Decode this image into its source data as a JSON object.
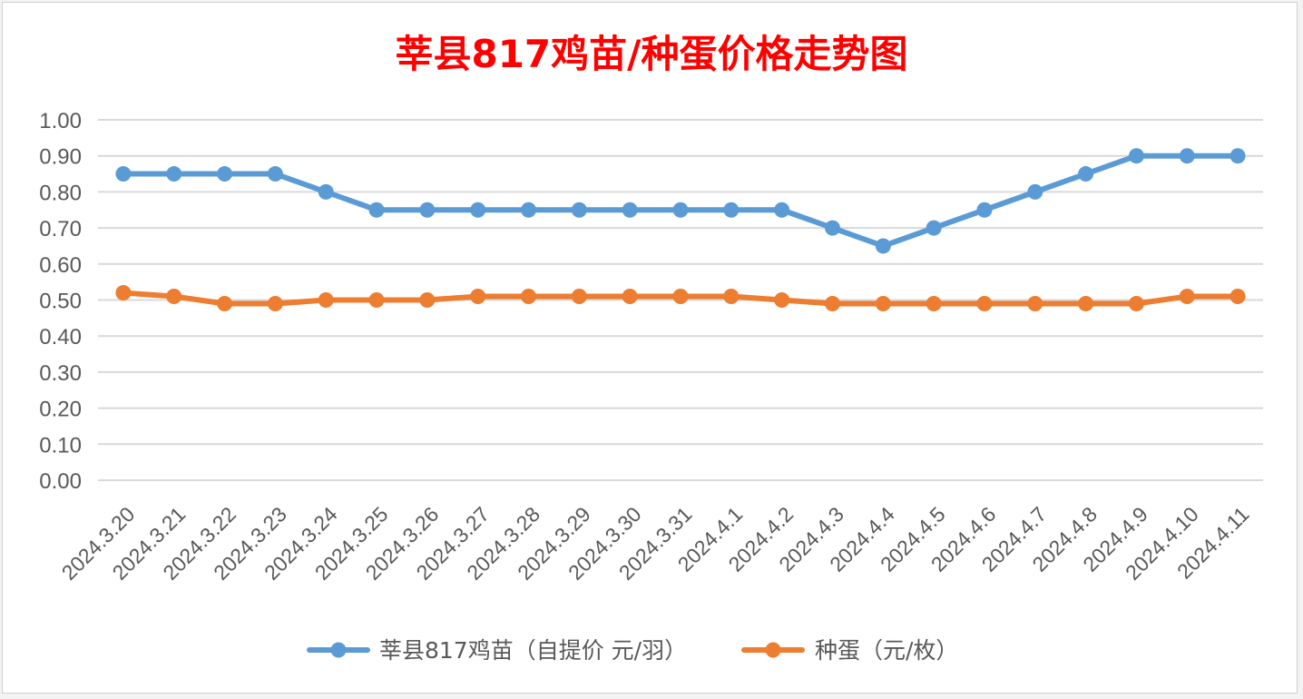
{
  "chart_data": {
    "type": "line",
    "title": "莘县817鸡苗/种蛋价格走势图",
    "title_color": "#ff0000",
    "categories": [
      "2024.3.20",
      "2024.3.21",
      "2024.3.22",
      "2024.3.23",
      "2024.3.24",
      "2024.3.25",
      "2024.3.26",
      "2024.3.27",
      "2024.3.28",
      "2024.3.29",
      "2024.3.30",
      "2024.3.31",
      "2024.4.1",
      "2024.4.2",
      "2024.4.3",
      "2024.4.4",
      "2024.4.5",
      "2024.4.6",
      "2024.4.7",
      "2024.4.8",
      "2024.4.9",
      "2024.4.10",
      "2024.4.11"
    ],
    "yticks": [
      "0.00",
      "0.10",
      "0.20",
      "0.30",
      "0.40",
      "0.50",
      "0.60",
      "0.70",
      "0.80",
      "0.90",
      "1.00"
    ],
    "ylim": [
      0,
      1.0
    ],
    "grid": true,
    "legend_position": "bottom",
    "series": [
      {
        "name": "莘县817鸡苗（自提价 元/羽）",
        "color": "#5b9bd5",
        "values": [
          0.85,
          0.85,
          0.85,
          0.85,
          0.8,
          0.75,
          0.75,
          0.75,
          0.75,
          0.75,
          0.75,
          0.75,
          0.75,
          0.75,
          0.7,
          0.65,
          0.7,
          0.75,
          0.8,
          0.85,
          0.9,
          0.9,
          0.9
        ]
      },
      {
        "name": "种蛋（元/枚）",
        "color": "#ed7d31",
        "values": [
          0.52,
          0.51,
          0.49,
          0.49,
          0.5,
          0.5,
          0.5,
          0.51,
          0.51,
          0.51,
          0.51,
          0.51,
          0.51,
          0.5,
          0.49,
          0.49,
          0.49,
          0.49,
          0.49,
          0.49,
          0.49,
          0.51,
          0.51
        ]
      }
    ]
  }
}
